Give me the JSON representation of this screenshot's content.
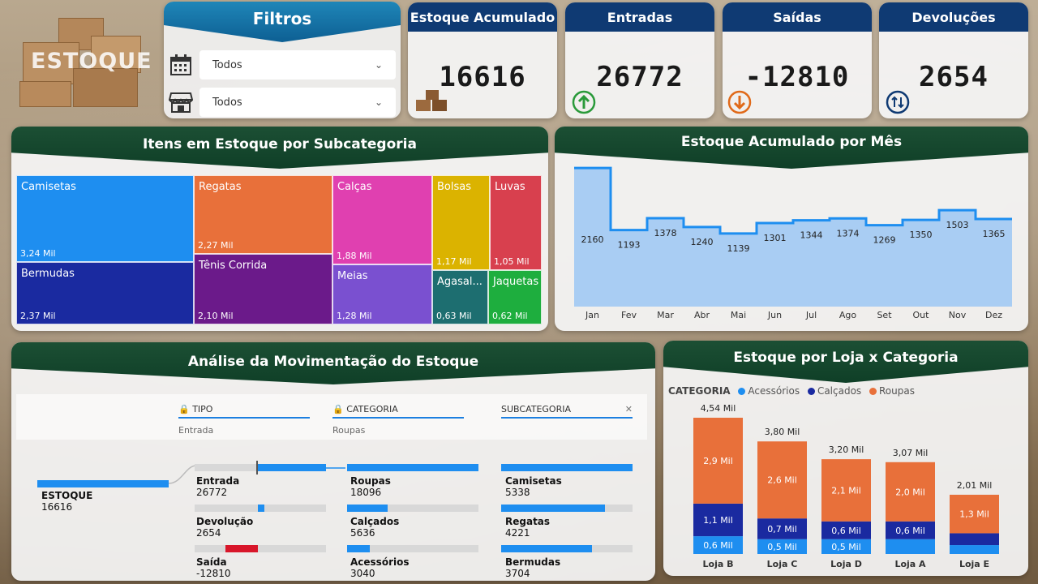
{
  "logo": {
    "text": "ESTOQUE"
  },
  "filters": {
    "title": "Filtros",
    "items": [
      {
        "icon": "calendar-icon",
        "value": "Todos"
      },
      {
        "icon": "store-icon",
        "value": "Todos"
      }
    ]
  },
  "kpis": [
    {
      "title": "Estoque Acumulado",
      "value": "16616",
      "icon": "boxes-icon"
    },
    {
      "title": "Entradas",
      "value": "26772",
      "icon": "arrow-up-circle-icon"
    },
    {
      "title": "Saídas",
      "value": "-12810",
      "icon": "arrow-down-circle-icon"
    },
    {
      "title": "Devoluções",
      "value": "2654",
      "icon": "arrows-updown-circle-icon"
    }
  ],
  "treemap": {
    "title": "Itens em Estoque por Subcategoria",
    "cells": [
      {
        "name": "Camisetas",
        "value": "3,24 Mil",
        "color": "#1e8ef0"
      },
      {
        "name": "Bermudas",
        "value": "2,37 Mil",
        "color": "#1a2aa0"
      },
      {
        "name": "Regatas",
        "value": "2,27 Mil",
        "color": "#e8703a"
      },
      {
        "name": "Tênis Corrida",
        "value": "2,10 Mil",
        "color": "#6b1a8a"
      },
      {
        "name": "Calças",
        "value": "1,88 Mil",
        "color": "#e040b0"
      },
      {
        "name": "Meias",
        "value": "1,28 Mil",
        "color": "#7a50d0"
      },
      {
        "name": "Bolsas",
        "value": "1,17 Mil",
        "color": "#dbb300"
      },
      {
        "name": "Luvas",
        "value": "1,05 Mil",
        "color": "#d8404e"
      },
      {
        "name": "Agasal...",
        "value": "0,63 Mil",
        "color": "#1d6e70"
      },
      {
        "name": "Jaquetas",
        "value": "0,62 Mil",
        "color": "#1eae3e"
      }
    ]
  },
  "monthly": {
    "title": "Estoque Acumulado por Mês"
  },
  "sankey": {
    "title": "Análise da Movimentação do Estoque",
    "headers": [
      {
        "label": "TIPO",
        "selected": "Entrada"
      },
      {
        "label": "CATEGORIA",
        "selected": "Roupas"
      },
      {
        "label": "SUBCATEGORIA",
        "selected": ""
      }
    ],
    "root": {
      "name": "ESTOQUE",
      "value": "16616"
    },
    "tipo": [
      {
        "name": "Entrada",
        "value": "26772"
      },
      {
        "name": "Devolução",
        "value": "2654"
      },
      {
        "name": "Saída",
        "value": "-12810"
      }
    ],
    "categoria": [
      {
        "name": "Roupas",
        "value": "18096"
      },
      {
        "name": "Calçados",
        "value": "5636"
      },
      {
        "name": "Acessórios",
        "value": "3040"
      }
    ],
    "subcategoria": [
      {
        "name": "Camisetas",
        "value": "5338"
      },
      {
        "name": "Regatas",
        "value": "4221"
      },
      {
        "name": "Bermudas",
        "value": "3704"
      }
    ]
  },
  "store_chart": {
    "title": "Estoque por Loja x Categoria",
    "legend_title": "CATEGORIA"
  },
  "chart_data": [
    {
      "type": "line",
      "title": "Estoque Acumulado por Mês",
      "categories": [
        "Jan",
        "Fev",
        "Mar",
        "Abr",
        "Mai",
        "Jun",
        "Jul",
        "Ago",
        "Set",
        "Out",
        "Nov",
        "Dez"
      ],
      "values": [
        2160,
        1193,
        1378,
        1240,
        1139,
        1301,
        1344,
        1374,
        1269,
        1350,
        1503,
        1365
      ],
      "ylim": [
        0,
        2300
      ]
    },
    {
      "type": "bar",
      "title": "Estoque por Loja x Categoria",
      "categories": [
        "Loja B",
        "Loja C",
        "Loja D",
        "Loja A",
        "Loja E"
      ],
      "totals": [
        "4,54 Mil",
        "3,80 Mil",
        "3,20 Mil",
        "3,07 Mil",
        "2,01 Mil"
      ],
      "total_values": [
        4.54,
        3.8,
        3.2,
        3.07,
        2.01
      ],
      "series": [
        {
          "name": "Acessórios",
          "color": "#1e8ef0",
          "values": [
            0.6,
            0.5,
            0.5,
            0.5,
            0.3
          ],
          "labels": [
            "0,6 Mil",
            "0,5 Mil",
            "0,5 Mil",
            "",
            ""
          ]
        },
        {
          "name": "Calçados",
          "color": "#1a2aa0",
          "values": [
            1.1,
            0.7,
            0.6,
            0.6,
            0.4
          ],
          "labels": [
            "1,1 Mil",
            "0,7 Mil",
            "0,6 Mil",
            "0,6 Mil",
            ""
          ]
        },
        {
          "name": "Roupas",
          "color": "#e8703a",
          "values": [
            2.9,
            2.6,
            2.1,
            2.0,
            1.3
          ],
          "labels": [
            "2,9 Mil",
            "2,6 Mil",
            "2,1 Mil",
            "2,0 Mil",
            "1,3 Mil"
          ]
        }
      ]
    }
  ]
}
